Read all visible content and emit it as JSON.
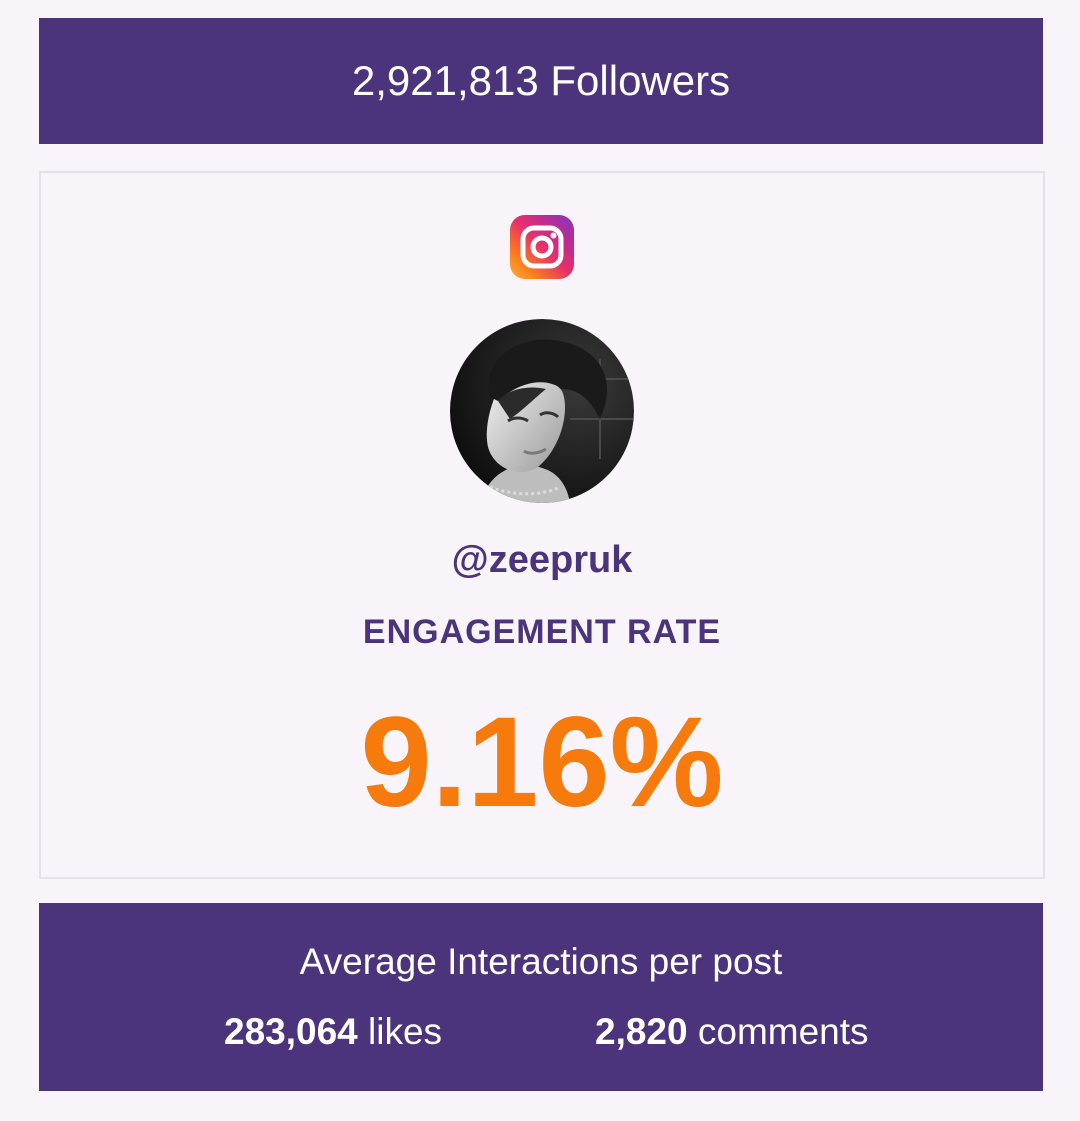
{
  "followers": {
    "label": "2,921,813 Followers"
  },
  "profile": {
    "platform_icon": "instagram-icon",
    "avatar": "profile-photo",
    "handle": "@zeepruk",
    "engagement_label": "ENGAGEMENT RATE",
    "engagement_rate": "9.16%"
  },
  "interactions": {
    "title": "Average Interactions per post",
    "likes_value": "283,064",
    "likes_label": "likes",
    "comments_value": "2,820",
    "comments_label": "comments"
  },
  "colors": {
    "brand_purple": "#4c347c",
    "accent_orange": "#f77a0c",
    "background": "#f8f4fa"
  }
}
